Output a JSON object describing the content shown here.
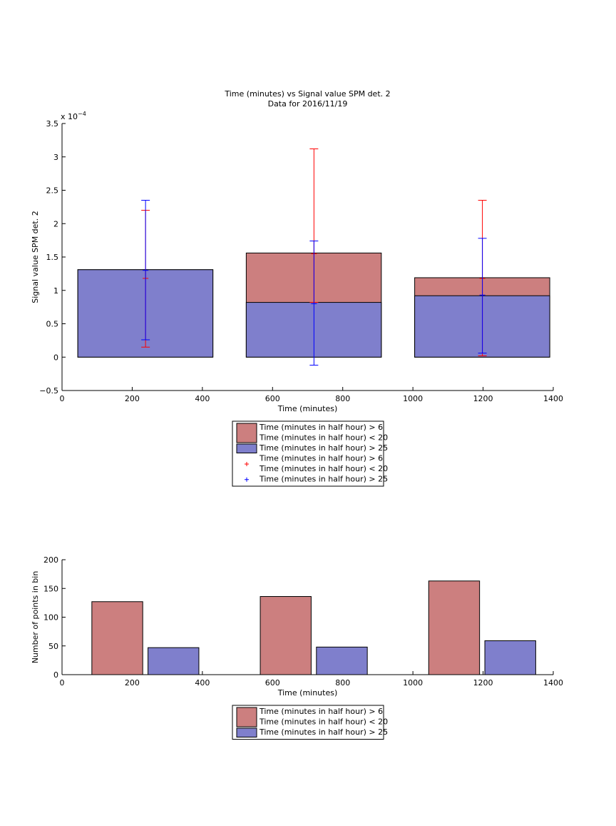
{
  "chart_data": [
    {
      "type": "bar",
      "title": "Time (minutes) vs Signal value SPM det. 2",
      "subtitle": "Data for 2016/11/19",
      "xlabel": "Time (minutes)",
      "ylabel": "Signal value SPM det. 2",
      "y_exponent_label": "x 10",
      "y_exponent_power": "−4",
      "xlim": [
        0,
        1400
      ],
      "ylim": [
        -0.5,
        3.5
      ],
      "y_scale_factor": 0.0001,
      "x_ticks": [
        "0",
        "200",
        "400",
        "600",
        "800",
        "1000",
        "1200",
        "1400"
      ],
      "y_ticks": [
        "−0.5",
        "0",
        "0.5",
        "1",
        "1.5",
        "2",
        "2.5",
        "3",
        "3.5"
      ],
      "bars": [
        {
          "x_start": 45,
          "x_end": 430,
          "red_top": 1.31,
          "blue_top": 1.31
        },
        {
          "x_start": 525,
          "x_end": 910,
          "red_top": 1.56,
          "blue_top": 0.82
        },
        {
          "x_start": 1005,
          "x_end": 1390,
          "red_top": 1.19,
          "blue_top": 0.92
        }
      ],
      "error_bars": [
        {
          "series": "red",
          "x": 238,
          "y": 1.18,
          "lower": 0.15,
          "upper": 2.2
        },
        {
          "series": "blue",
          "x": 238,
          "y": 1.3,
          "lower": 0.26,
          "upper": 2.35
        },
        {
          "series": "red",
          "x": 718,
          "y": 1.55,
          "lower": 0.82,
          "upper": 3.12
        },
        {
          "series": "blue",
          "x": 718,
          "y": 0.8,
          "lower": -0.12,
          "upper": 1.74
        },
        {
          "series": "red",
          "x": 1198,
          "y": 1.18,
          "lower": 0.02,
          "upper": 2.35
        },
        {
          "series": "blue",
          "x": 1198,
          "y": 0.93,
          "lower": 0.06,
          "upper": 1.78
        }
      ],
      "legend": {
        "placement": "below",
        "entries": [
          {
            "kind": "patch",
            "series": "red",
            "label_lines": [
              "Time (minutes in half hour) > 6",
              "Time (minutes in half hour) < 20"
            ]
          },
          {
            "kind": "patch",
            "series": "blue",
            "label_lines": [
              "Time (minutes in half hour) > 25"
            ]
          },
          {
            "kind": "marker",
            "series": "red",
            "label_lines": [
              "Time (minutes in half hour) > 6",
              "Time (minutes in half hour) < 20"
            ]
          },
          {
            "kind": "marker",
            "series": "blue",
            "label_lines": [
              "Time (minutes in half hour) > 25"
            ]
          }
        ]
      }
    },
    {
      "type": "bar",
      "title": "",
      "xlabel": "Time (minutes)",
      "ylabel": "Number of points in bin",
      "xlim": [
        0,
        1400
      ],
      "ylim": [
        0,
        200
      ],
      "x_ticks": [
        "0",
        "200",
        "400",
        "600",
        "800",
        "1000",
        "1200",
        "1400"
      ],
      "y_ticks": [
        "0",
        "50",
        "100",
        "150",
        "200"
      ],
      "bars": [
        {
          "series": "red",
          "x_start": 85,
          "x_end": 230,
          "value": 127
        },
        {
          "series": "blue",
          "x_start": 245,
          "x_end": 390,
          "value": 47
        },
        {
          "series": "red",
          "x_start": 565,
          "x_end": 710,
          "value": 136
        },
        {
          "series": "blue",
          "x_start": 725,
          "x_end": 870,
          "value": 48
        },
        {
          "series": "red",
          "x_start": 1045,
          "x_end": 1190,
          "value": 163
        },
        {
          "series": "blue",
          "x_start": 1205,
          "x_end": 1350,
          "value": 59
        }
      ],
      "legend": {
        "placement": "below",
        "entries": [
          {
            "kind": "patch",
            "series": "red",
            "label_lines": [
              "Time (minutes in half hour) > 6",
              "Time (minutes in half hour) < 20"
            ]
          },
          {
            "kind": "patch",
            "series": "blue",
            "label_lines": [
              "Time (minutes in half hour) > 25"
            ]
          }
        ]
      }
    }
  ],
  "colors": {
    "red_fill": "#cc7f7f",
    "blue_fill": "#7f7fcc",
    "red_line": "#ff0000",
    "blue_line": "#0000ff",
    "axis": "#000000"
  }
}
